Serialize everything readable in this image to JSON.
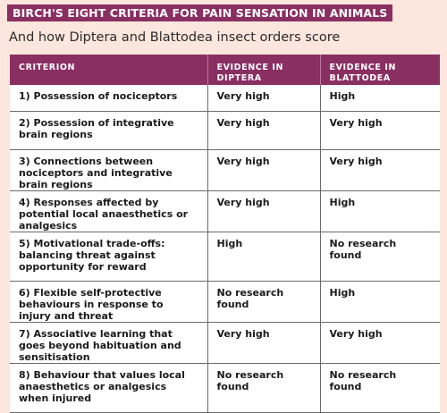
{
  "title": "BIRCH'S EIGHT CRITERIA FOR PAIN SENSATION IN ANIMALS",
  "subtitle": "And how Diptera and Blattodea insect orders score",
  "table": {
    "headers": {
      "criterion": "CRITERION",
      "diptera": "EVIDENCE IN DIPTERA",
      "blattodea": "EVIDENCE IN BLATTODEA"
    },
    "rows": [
      {
        "criterion": "1) Possession of nociceptors",
        "diptera": "Very high",
        "blattodea": "High"
      },
      {
        "criterion": "2) Possession of integrative brain regions",
        "diptera": "Very high",
        "blattodea": "Very high"
      },
      {
        "criterion": "3) Connections between nociceptors and integrative brain regions",
        "diptera": "Very high",
        "blattodea": "Very high"
      },
      {
        "criterion": "4) Responses affected by potential local anaesthetics or analgesics",
        "diptera": "Very high",
        "blattodea": "High"
      },
      {
        "criterion": "5) Motivational trade-offs: balancing threat against opportunity for reward",
        "diptera": "High",
        "blattodea": "No research found"
      },
      {
        "criterion": "6) Flexible self-protective behaviours in response to injury and threat",
        "diptera": "No research found",
        "blattodea": "High"
      },
      {
        "criterion": "7) Associative learning that goes beyond habituation and sensitisation",
        "diptera": "Very high",
        "blattodea": "Very high"
      },
      {
        "criterion": "8) Behaviour that values local anaesthetics or analgesics when injured",
        "diptera": "No research found",
        "blattodea": "No research found"
      }
    ]
  }
}
